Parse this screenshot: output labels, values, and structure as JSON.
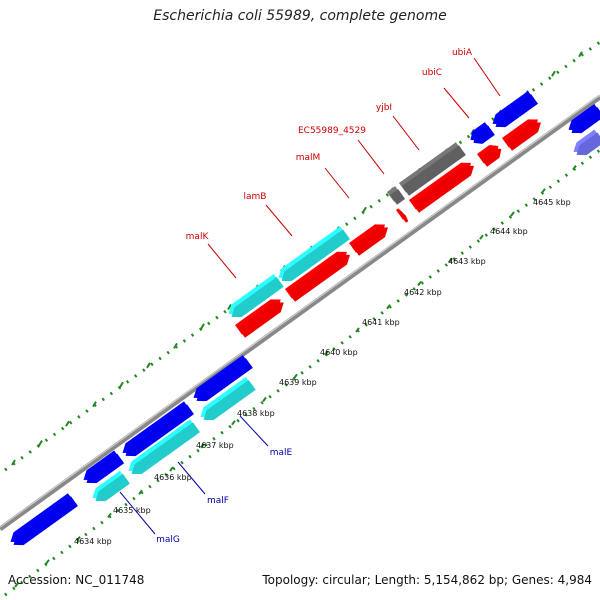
{
  "title": "Escherichia coli 55989, complete genome",
  "accession": "Accession: NC_011748",
  "stats": "Topology: circular; Length: 5,154,862 bp; Genes: 4,984",
  "colors": {
    "forward_gene": "#0000ee",
    "reverse_gene": "#ee0000",
    "cyan_gene": "#22cccc",
    "gray_gene": "#606060",
    "faded_gene": "#6666dd",
    "backbone": "#999999",
    "dots": "#228822",
    "label_red": "#cc0000",
    "label_blue": "#0000aa"
  },
  "ticks": [
    {
      "label": "4634 kbp"
    },
    {
      "label": "4635 kbp"
    },
    {
      "label": "4636 kbp"
    },
    {
      "label": "4637 kbp"
    },
    {
      "label": "4638 kbp"
    },
    {
      "label": "4639 kbp"
    },
    {
      "label": "4640 kbp"
    },
    {
      "label": "4641 kbp"
    },
    {
      "label": "4642 kbp"
    },
    {
      "label": "4643 kbp"
    },
    {
      "label": "4644 kbp"
    },
    {
      "label": "4645 kbp"
    }
  ],
  "gene_labels_top": [
    "ubiA",
    "ubiC",
    "yjbI",
    "EC55989_4529",
    "malM",
    "lamB",
    "malK"
  ],
  "gene_labels_bottom": [
    "malE",
    "malF",
    "malG"
  ]
}
